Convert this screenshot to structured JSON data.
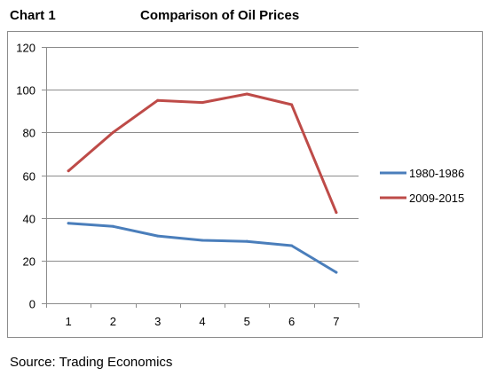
{
  "header": {
    "chart_label": "Chart 1",
    "title": "Comparison of Oil Prices"
  },
  "footer": {
    "source": "Source: Trading Economics"
  },
  "colors": {
    "series_1": "#4a7ebb",
    "series_2": "#be4b48",
    "grid": "#8c8c8c",
    "axis_text": "#000000"
  },
  "chart_data": {
    "type": "line",
    "title": "Comparison of Oil Prices",
    "xlabel": "",
    "ylabel": "",
    "x": [
      1,
      2,
      3,
      4,
      5,
      6,
      7
    ],
    "ylim": [
      0,
      120
    ],
    "yticks": [
      0,
      20,
      40,
      60,
      80,
      100,
      120
    ],
    "grid": true,
    "legend_position": "right",
    "series": [
      {
        "name": "1980-1986",
        "color": "#4a7ebb",
        "values": [
          37.5,
          36,
          31.5,
          29.5,
          29,
          27,
          14.5
        ]
      },
      {
        "name": "2009-2015",
        "color": "#be4b48",
        "values": [
          62,
          80,
          95,
          94,
          98,
          93,
          42.5
        ]
      }
    ]
  }
}
